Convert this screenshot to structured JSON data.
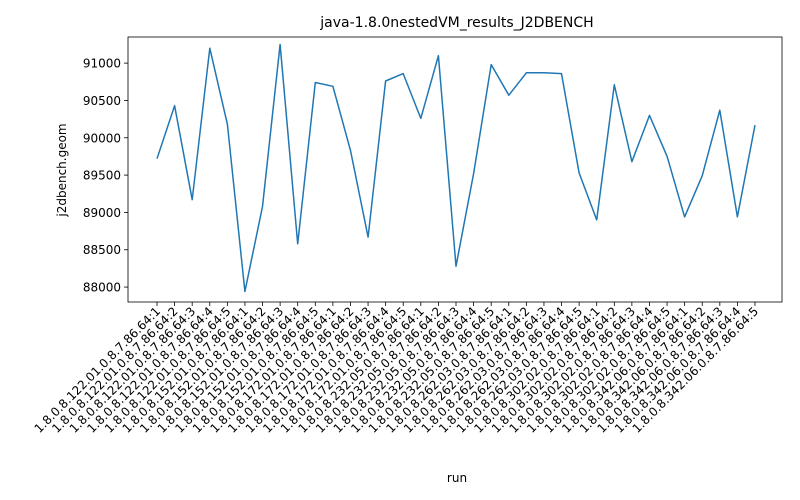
{
  "chart_data": {
    "type": "line",
    "title": "java-1.8.0nestedVM_results_J2DBENCH",
    "xlabel": "run",
    "ylabel": "j2dbench.geom",
    "ylim": [
      87800,
      91350
    ],
    "yticks": [
      88000,
      88500,
      89000,
      89500,
      90000,
      90500,
      91000
    ],
    "grid": false,
    "legend": "none",
    "colors": {
      "line": "#1f77b4"
    },
    "categories": [
      "1.8.0.8.122.01.0.8.7.86.64:1",
      "1.8.0.8.122.01.0.8.7.86.64:2",
      "1.8.0.8.122.01.0.8.7.86.64:3",
      "1.8.0.8.122.01.0.8.7.86.64:4",
      "1.8.0.8.122.01.0.8.7.86.64:5",
      "1.8.0.8.152.01.0.8.7.86.64:1",
      "1.8.0.8.152.01.0.8.7.86.64:2",
      "1.8.0.8.152.01.0.8.7.86.64:3",
      "1.8.0.8.152.01.0.8.7.86.64:4",
      "1.8.0.8.152.01.0.8.7.86.64:5",
      "1.8.0.8.172.01.0.8.7.86.64:1",
      "1.8.0.8.172.01.0.8.7.86.64:2",
      "1.8.0.8.172.01.0.8.7.86.64:3",
      "1.8.0.8.172.01.0.8.7.86.64:4",
      "1.8.0.8.172.01.0.8.7.86.64:5",
      "1.8.0.8.232.05.0.8.7.86.64:1",
      "1.8.0.8.232.05.0.8.7.86.64:2",
      "1.8.0.8.232.05.0.8.7.86.64:3",
      "1.8.0.8.232.05.0.8.7.86.64:4",
      "1.8.0.8.232.05.0.8.7.86.64:5",
      "1.8.0.8.262.03.0.8.7.86.64:1",
      "1.8.0.8.262.03.0.8.7.86.64:2",
      "1.8.0.8.262.03.0.8.7.86.64:3",
      "1.8.0.8.262.03.0.8.7.86.64:4",
      "1.8.0.8.262.03.0.8.7.86.64:5",
      "1.8.0.8.302.02.0.8.7.86.64:1",
      "1.8.0.8.302.02.0.8.7.86.64:2",
      "1.8.0.8.302.02.0.8.7.86.64:3",
      "1.8.0.8.302.02.0.8.7.86.64:4",
      "1.8.0.8.302.02.0.8.7.86.64:5",
      "1.8.0.8.342.06.0.8.7.86.64:1",
      "1.8.0.8.342.06.0.8.7.86.64:2",
      "1.8.0.8.342.06.0.8.7.86.64:3",
      "1.8.0.8.342.06.0.8.7.86.64:4",
      "1.8.0.8.342.06.0.8.7.86.64:5"
    ],
    "values": [
      89720,
      90430,
      89170,
      91200,
      90180,
      87940,
      89080,
      91250,
      88580,
      90740,
      90690,
      89830,
      88670,
      90760,
      90860,
      90260,
      91100,
      88280,
      89520,
      90980,
      90570,
      90870,
      90870,
      90860,
      89530,
      88900,
      90710,
      89680,
      90300,
      89750,
      88940,
      89490,
      90370,
      88940,
      90170
    ]
  }
}
